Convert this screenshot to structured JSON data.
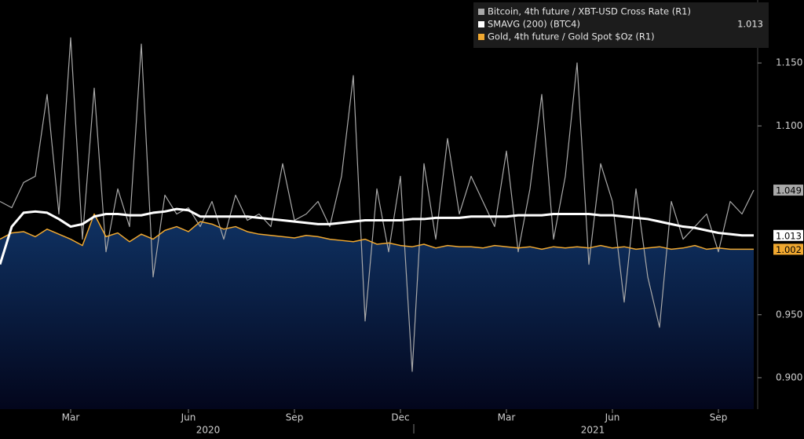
{
  "chart_data": {
    "type": "line",
    "categories": [
      null,
      null,
      null,
      null,
      null,
      null,
      "Mar",
      null,
      null,
      null,
      null,
      null,
      null,
      null,
      null,
      null,
      "Jun",
      null,
      null,
      null,
      null,
      null,
      null,
      null,
      null,
      "Sep",
      null,
      null,
      null,
      null,
      null,
      null,
      null,
      null,
      "Dec",
      null,
      null,
      null,
      null,
      null,
      null,
      null,
      null,
      "Mar",
      null,
      null,
      null,
      null,
      null,
      null,
      null,
      null,
      "Jun",
      null,
      null,
      null,
      null,
      null,
      null,
      null,
      null,
      "Sep",
      null,
      null,
      null
    ],
    "year_labels": [
      "2020",
      "2021"
    ],
    "ylim": [
      0.875,
      1.2
    ],
    "yticks": [
      {
        "value": 0.9,
        "label": "0.900"
      },
      {
        "value": 0.95,
        "label": "0.950"
      },
      {
        "value": 1.1,
        "label": "1.100"
      },
      {
        "value": 1.15,
        "label": "1.150"
      }
    ],
    "grid": false,
    "legend": "top-right",
    "series": [
      {
        "name": "Bitcoin, 4th future / XBT-USD Cross Rate (R1)",
        "color": "#a9a9a9",
        "last_label": "1.049",
        "values": [
          1.04,
          1.035,
          1.055,
          1.06,
          1.125,
          1.03,
          1.17,
          1.01,
          1.13,
          1.0,
          1.05,
          1.02,
          1.165,
          0.98,
          1.045,
          1.03,
          1.035,
          1.02,
          1.04,
          1.01,
          1.045,
          1.025,
          1.03,
          1.02,
          1.07,
          1.025,
          1.03,
          1.04,
          1.02,
          1.06,
          1.14,
          0.945,
          1.05,
          1.0,
          1.06,
          0.905,
          1.07,
          1.01,
          1.09,
          1.03,
          1.06,
          1.04,
          1.02,
          1.08,
          1.0,
          1.05,
          1.125,
          1.01,
          1.06,
          1.15,
          0.99,
          1.07,
          1.04,
          0.96,
          1.05,
          0.98,
          0.94,
          1.04,
          1.01,
          1.02,
          1.03,
          1.0,
          1.04,
          1.03,
          1.049
        ]
      },
      {
        "name": "SMAVG (200) (BTC4)",
        "color": "#ffffff",
        "last_label": "1.013",
        "values": [
          0.99,
          1.02,
          1.031,
          1.032,
          1.031,
          1.026,
          1.02,
          1.022,
          1.028,
          1.03,
          1.03,
          1.029,
          1.029,
          1.031,
          1.032,
          1.034,
          1.033,
          1.028,
          1.028,
          1.028,
          1.028,
          1.028,
          1.027,
          1.026,
          1.025,
          1.024,
          1.023,
          1.022,
          1.022,
          1.023,
          1.024,
          1.025,
          1.025,
          1.025,
          1.025,
          1.026,
          1.026,
          1.027,
          1.027,
          1.027,
          1.028,
          1.028,
          1.028,
          1.028,
          1.029,
          1.029,
          1.029,
          1.03,
          1.03,
          1.03,
          1.03,
          1.029,
          1.029,
          1.028,
          1.027,
          1.026,
          1.024,
          1.022,
          1.02,
          1.019,
          1.017,
          1.015,
          1.014,
          1.013,
          1.013
        ]
      },
      {
        "name": "Gold, 4th future / Gold Spot $Oz (R1)",
        "color": "#f0a830",
        "last_label": "1.002",
        "fill": "area",
        "values": [
          1.01,
          1.015,
          1.016,
          1.012,
          1.018,
          1.014,
          1.01,
          1.005,
          1.03,
          1.012,
          1.015,
          1.008,
          1.014,
          1.01,
          1.017,
          1.02,
          1.016,
          1.024,
          1.022,
          1.018,
          1.02,
          1.016,
          1.014,
          1.013,
          1.012,
          1.011,
          1.013,
          1.012,
          1.01,
          1.009,
          1.008,
          1.01,
          1.006,
          1.007,
          1.005,
          1.004,
          1.006,
          1.003,
          1.005,
          1.004,
          1.004,
          1.003,
          1.005,
          1.004,
          1.003,
          1.004,
          1.002,
          1.004,
          1.003,
          1.004,
          1.003,
          1.005,
          1.003,
          1.004,
          1.002,
          1.003,
          1.004,
          1.002,
          1.003,
          1.005,
          1.002,
          1.003,
          1.002,
          1.002,
          1.002
        ]
      }
    ]
  }
}
